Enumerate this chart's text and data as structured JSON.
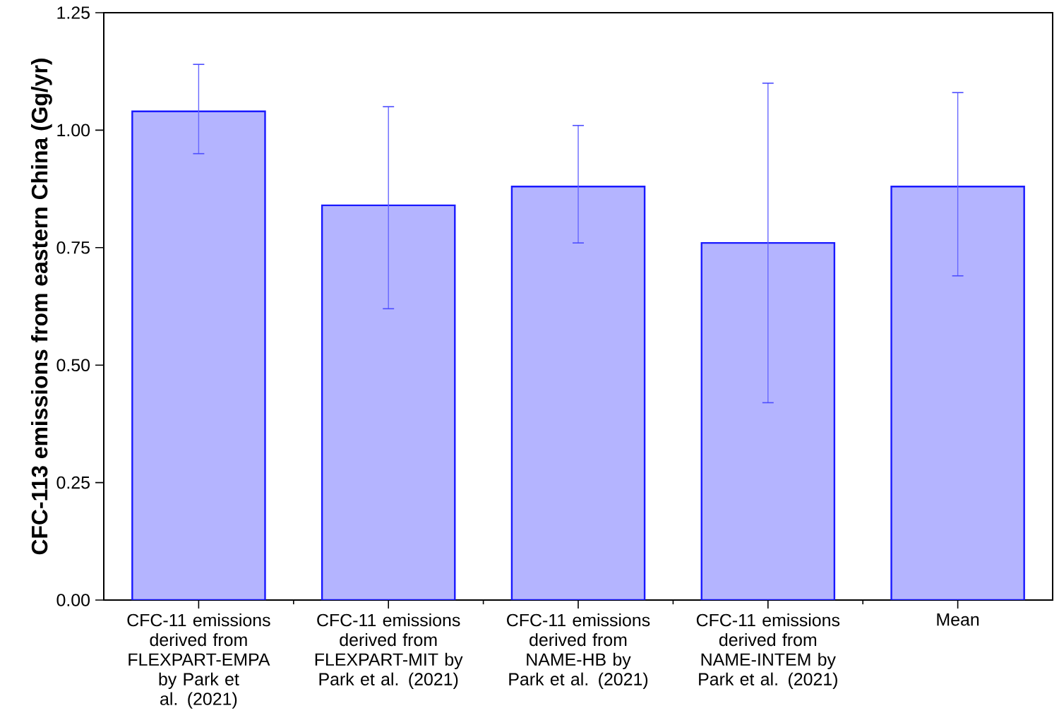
{
  "chart_data": {
    "type": "bar",
    "ylabel": "CFC-113 emissions from eastern China (Gg/yr)",
    "categories": [
      "CFC-11 emissions derived from FLEXPART-EMPA by Park et al. (2021)",
      "CFC-11 emissions derived from FLEXPART-MIT by Park et al. (2021)",
      "CFC-11 emissions derived from NAME-HB by Park et al. (2021)",
      "CFC-11 emissions derived from NAME-INTEM by Park et al. (2021)",
      "Mean"
    ],
    "values": [
      1.04,
      0.84,
      0.88,
      0.76,
      0.88
    ],
    "errors": [
      [
        0.95,
        1.14
      ],
      [
        0.62,
        1.05
      ],
      [
        0.76,
        1.01
      ],
      [
        0.42,
        1.1
      ],
      [
        0.69,
        1.08
      ]
    ],
    "color": "#b4b4ff",
    "ylim": [
      0,
      1.25
    ],
    "yticks": [
      {
        "value": 0,
        "label": "0.00"
      },
      {
        "value": 0.25,
        "label": "0.25"
      },
      {
        "value": 0.5,
        "label": "0.50"
      },
      {
        "value": 0.75,
        "label": "0.75"
      },
      {
        "value": 1.0,
        "label": "1.00"
      },
      {
        "value": 1.25,
        "label": "1.25"
      }
    ]
  }
}
